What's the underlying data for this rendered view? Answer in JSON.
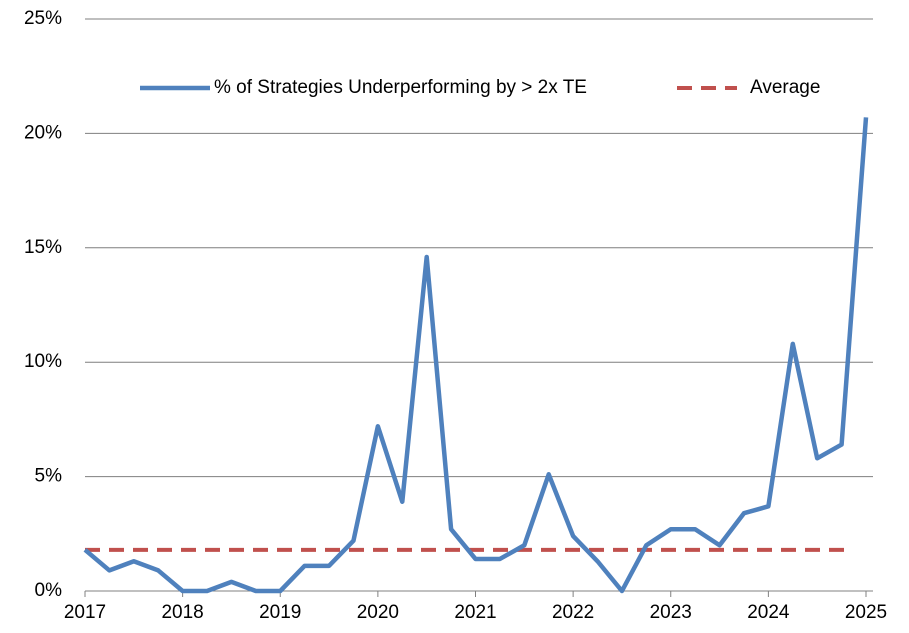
{
  "chart_data": {
    "type": "line",
    "x": [
      2017,
      2017.25,
      2017.5,
      2017.75,
      2018,
      2018.25,
      2018.5,
      2018.75,
      2019,
      2019.25,
      2019.5,
      2019.75,
      2020,
      2020.25,
      2020.5,
      2020.75,
      2021,
      2021.25,
      2021.5,
      2021.75,
      2022,
      2022.25,
      2022.5,
      2022.75,
      2023,
      2023.25,
      2023.5,
      2023.75,
      2024,
      2024.25,
      2024.5,
      2024.75,
      2025
    ],
    "series": [
      {
        "name": "% of Strategies Underperforming by > 2x TE",
        "color": "#4f81bd",
        "values": [
          1.8,
          0.9,
          1.3,
          0.9,
          0,
          0,
          0.4,
          0,
          0,
          1.1,
          1.1,
          2.2,
          7.2,
          3.9,
          14.6,
          2.7,
          1.4,
          1.4,
          2.0,
          5.1,
          2.4,
          1.3,
          0,
          2.0,
          2.7,
          2.7,
          2.0,
          3.4,
          3.7,
          10.8,
          5.8,
          6.4,
          20.7
        ]
      }
    ],
    "average": {
      "name": "Average",
      "value": 1.8,
      "color": "#c0504d"
    },
    "xlim": [
      2017,
      2025
    ],
    "xticks": [
      2017,
      2018,
      2019,
      2020,
      2021,
      2022,
      2023,
      2024,
      2025
    ],
    "ylim": [
      0,
      25
    ],
    "yticks": [
      {
        "value": 0,
        "label": "0%"
      },
      {
        "value": 5,
        "label": "5%"
      },
      {
        "value": 10,
        "label": "10%"
      },
      {
        "value": 15,
        "label": "15%"
      },
      {
        "value": 20,
        "label": "20%"
      },
      {
        "value": 25,
        "label": "25%"
      }
    ],
    "grid": true
  }
}
